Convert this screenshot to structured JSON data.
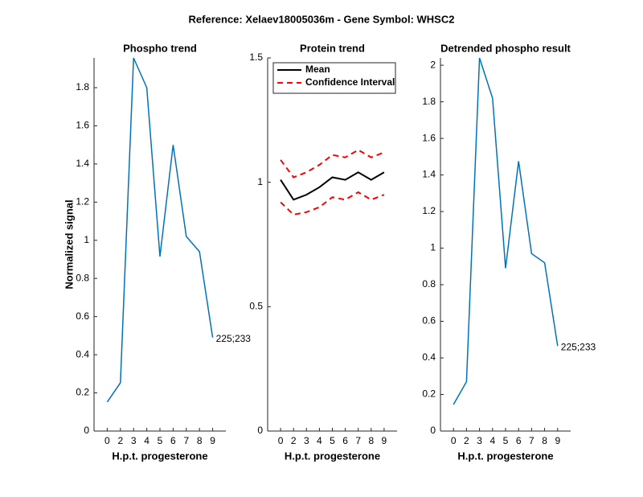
{
  "title": "Reference:  Xelaev18005036m - Gene Symbol:  WHSC2",
  "chart_data": [
    {
      "type": "line",
      "title": "Phospho trend",
      "xlabel": "H.p.t. progesterone",
      "ylabel": "Normalized signal",
      "categories": [
        "0",
        "2",
        "3",
        "4",
        "5",
        "6",
        "7",
        "8",
        "9"
      ],
      "series": [
        {
          "color": "#0072bd",
          "values": [
            0.152,
            0.253,
            1.956,
            1.8,
            0.915,
            1.5,
            1.02,
            0.94,
            0.49
          ]
        }
      ],
      "annotation": "225;233",
      "ylim": [
        0,
        1.956
      ],
      "yticks": [
        0,
        0.2,
        0.4,
        0.6,
        0.8,
        1,
        1.2,
        1.4,
        1.6,
        1.8
      ]
    },
    {
      "type": "line",
      "title": "Protein trend",
      "xlabel": "H.p.t. progesterone",
      "categories": [
        "0",
        "2",
        "3",
        "4",
        "5",
        "6",
        "7",
        "8",
        "9"
      ],
      "series": [
        {
          "name": "Mean",
          "color": "#000000",
          "values": [
            1.01,
            0.93,
            0.95,
            0.98,
            1.02,
            1.01,
            1.04,
            1.01,
            1.04
          ]
        },
        {
          "name": "Confidence Interval",
          "color": "#ff0000",
          "dashed": true,
          "values": [
            1.09,
            1.02,
            1.04,
            1.07,
            1.11,
            1.1,
            1.13,
            1.1,
            1.12
          ],
          "lower": [
            0.92,
            0.87,
            0.88,
            0.9,
            0.94,
            0.93,
            0.96,
            0.93,
            0.95
          ]
        }
      ],
      "legend": "upper-left",
      "ylim": [
        0,
        1.5
      ],
      "yticks": [
        0,
        0.5,
        1,
        1.5
      ]
    },
    {
      "type": "line",
      "title": "Detrended phospho result",
      "xlabel": "H.p.t. progesterone",
      "categories": [
        "0",
        "2",
        "3",
        "4",
        "5",
        "6",
        "7",
        "8",
        "9"
      ],
      "series": [
        {
          "color": "#0072bd",
          "values": [
            0.145,
            0.27,
            2.04,
            1.82,
            0.89,
            1.475,
            0.97,
            0.92,
            0.465
          ]
        }
      ],
      "annotation": "225;233",
      "ylim": [
        0,
        2.04
      ],
      "yticks": [
        0,
        0.2,
        0.4,
        0.6,
        0.8,
        1,
        1.2,
        1.4,
        1.6,
        1.8,
        2
      ]
    }
  ]
}
